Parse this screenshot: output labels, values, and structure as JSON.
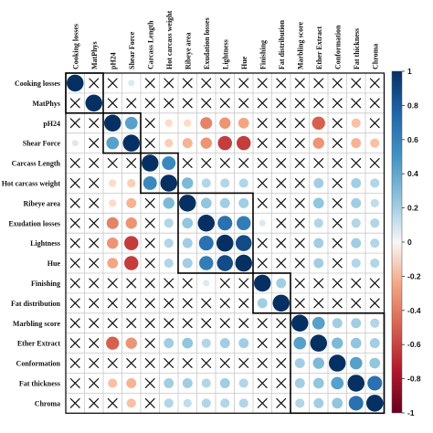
{
  "chart_data": {
    "type": "heatmap",
    "variables": [
      "Cooking losses",
      "MatPhys",
      "pH24",
      "Shear Force",
      "Carcass Length",
      "Hot carcass weight",
      "Ribeye area",
      "Exudation losses",
      "Lightness",
      "Hue",
      "Finishing",
      "Fat distribution",
      "Marbling score",
      "Ether Extract",
      "Conformation",
      "Fat thickness",
      "Chroma"
    ],
    "matrix": [
      [
        1,
        null,
        null,
        0.15,
        null,
        null,
        null,
        null,
        null,
        null,
        null,
        null,
        null,
        null,
        null,
        null,
        null
      ],
      [
        null,
        1,
        null,
        null,
        null,
        null,
        null,
        null,
        null,
        null,
        null,
        null,
        null,
        null,
        null,
        null,
        null
      ],
      [
        null,
        null,
        1,
        0.55,
        null,
        -0.2,
        -0.2,
        -0.5,
        -0.45,
        -0.4,
        null,
        null,
        null,
        -0.6,
        null,
        -0.3,
        null
      ],
      [
        0.15,
        null,
        0.55,
        1,
        null,
        -0.25,
        -0.35,
        -0.45,
        -0.7,
        -0.7,
        null,
        null,
        null,
        -0.45,
        null,
        -0.35,
        -0.3
      ],
      [
        null,
        null,
        null,
        null,
        1,
        0.65,
        null,
        null,
        null,
        null,
        null,
        null,
        null,
        null,
        null,
        null,
        null
      ],
      [
        null,
        null,
        -0.2,
        -0.25,
        0.65,
        1,
        0.45,
        0.3,
        0.3,
        0.3,
        null,
        null,
        null,
        0.35,
        null,
        0.35,
        0.3
      ],
      [
        null,
        null,
        -0.2,
        -0.35,
        null,
        0.45,
        1,
        0.4,
        0.35,
        0.35,
        null,
        null,
        null,
        0.4,
        null,
        0.35,
        0.25
      ],
      [
        null,
        null,
        -0.5,
        -0.45,
        null,
        0.3,
        0.4,
        1,
        0.75,
        0.7,
        0.15,
        null,
        null,
        0.3,
        null,
        0.3,
        0.3
      ],
      [
        null,
        null,
        -0.45,
        -0.7,
        null,
        0.3,
        0.35,
        0.75,
        1,
        0.9,
        null,
        null,
        null,
        0.35,
        null,
        0.35,
        0.3
      ],
      [
        null,
        null,
        -0.4,
        -0.7,
        null,
        0.3,
        0.35,
        0.7,
        0.9,
        1,
        null,
        null,
        null,
        0.35,
        null,
        0.3,
        0.3
      ],
      [
        null,
        null,
        null,
        null,
        null,
        null,
        null,
        0.15,
        null,
        null,
        1,
        0.35,
        null,
        null,
        null,
        null,
        null
      ],
      [
        null,
        null,
        null,
        null,
        null,
        null,
        null,
        null,
        null,
        null,
        0.35,
        1,
        null,
        null,
        null,
        null,
        null
      ],
      [
        null,
        null,
        null,
        null,
        null,
        null,
        null,
        null,
        null,
        null,
        null,
        null,
        1,
        0.55,
        0.35,
        0.35,
        0.3
      ],
      [
        null,
        null,
        -0.6,
        -0.45,
        null,
        0.35,
        0.4,
        0.3,
        0.35,
        0.35,
        null,
        null,
        0.55,
        1,
        0.45,
        0.4,
        0.35
      ],
      [
        null,
        null,
        null,
        null,
        null,
        null,
        null,
        null,
        null,
        null,
        null,
        null,
        0.35,
        0.45,
        1,
        0.55,
        0.4
      ],
      [
        null,
        null,
        -0.3,
        -0.35,
        null,
        0.35,
        0.35,
        0.3,
        0.35,
        0.3,
        null,
        null,
        0.35,
        0.4,
        0.55,
        1,
        0.75
      ],
      [
        null,
        null,
        null,
        -0.3,
        null,
        0.3,
        0.25,
        0.3,
        0.3,
        0.3,
        null,
        null,
        0.3,
        0.35,
        0.4,
        0.75,
        1
      ]
    ],
    "clusters": [
      [
        "Cooking losses",
        "MatPhys"
      ],
      [
        "pH24",
        "Shear Force"
      ],
      [
        "Carcass Length",
        "Hot carcass weight"
      ],
      [
        "Ribeye area",
        "Exudation losses",
        "Lightness",
        "Hue"
      ],
      [
        "Finishing",
        "Fat distribution"
      ],
      [
        "Marbling score",
        "Ether Extract",
        "Conformation",
        "Fat thickness",
        "Chroma"
      ]
    ],
    "non_significant_marker": "×",
    "colorbar": {
      "range": [
        -1,
        1
      ],
      "ticks": [
        "1",
        "0.8",
        "0.6",
        "0.4",
        "0.2",
        "0",
        "-0.2",
        "-0.4",
        "-0.6",
        "-0.8",
        "-1"
      ],
      "colors": [
        "#67001f",
        "#d6604d",
        "#f4a582",
        "#fddbc7",
        "#ffffff",
        "#d1e5f0",
        "#92c5de",
        "#4393c3",
        "#053061"
      ],
      "placement": "right"
    },
    "grid": true
  }
}
